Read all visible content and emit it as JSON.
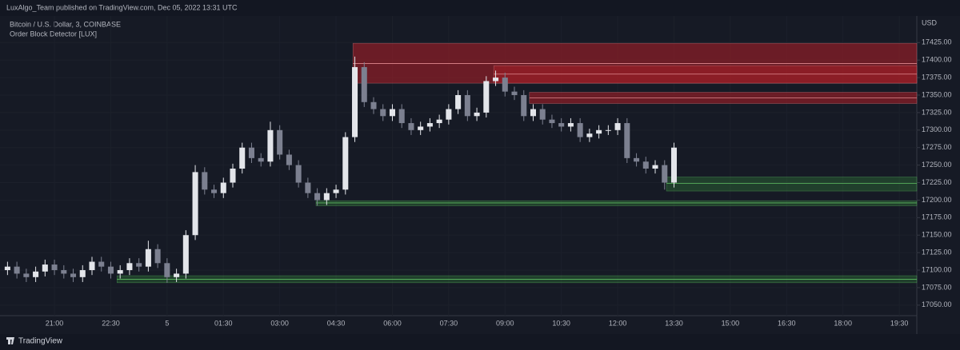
{
  "header": {
    "published": "LuxAlgo_Team published on TradingView.com, Dec 05, 2022 13:31 UTC"
  },
  "footer": {
    "brand": "TradingView"
  },
  "chart_data": {
    "type": "candlestick",
    "title": "Bitcoin / U.S. Dollar, 3, COINBASE",
    "subtitle": "Order Block Detector [LUX]",
    "y_axis_label": "USD",
    "up_color": "#e3e5ea",
    "down_color": "#7c8090",
    "x": [
      15,
      30,
      45,
      60,
      75,
      90,
      105,
      120,
      135,
      150,
      165,
      180,
      195,
      210,
      225,
      240,
      255,
      270,
      285,
      300,
      315,
      330,
      345,
      360,
      375,
      390,
      405,
      420,
      435,
      450,
      465,
      480,
      495,
      510,
      525,
      540,
      555,
      570,
      585,
      600,
      615,
      630,
      645,
      660,
      675,
      690,
      705,
      720,
      735,
      750,
      765,
      780,
      795,
      810,
      825,
      840,
      855,
      870,
      885,
      900,
      915,
      930,
      945,
      960,
      975,
      990,
      1005,
      1020,
      1035,
      1050,
      1065,
      1080
    ],
    "open": [
      17100,
      17105,
      17095,
      17090,
      17098,
      17108,
      17100,
      17095,
      17090,
      17100,
      17112,
      17105,
      17095,
      17100,
      17110,
      17105,
      17130,
      17110,
      17090,
      17095,
      17150,
      17240,
      17215,
      17210,
      17225,
      17245,
      17275,
      17260,
      17255,
      17300,
      17265,
      17250,
      17225,
      17210,
      17200,
      17210,
      17215,
      17290,
      17390,
      17340,
      17330,
      17320,
      17330,
      17310,
      17300,
      17305,
      17310,
      17315,
      17330,
      17350,
      17320,
      17325,
      17370,
      17375,
      17355,
      17350,
      17320,
      17330,
      17315,
      17310,
      17305,
      17310,
      17290,
      17295,
      17300,
      17300,
      17310,
      17260,
      17255,
      17245,
      17250,
      17225
    ],
    "high": [
      17112,
      17112,
      17102,
      17105,
      17115,
      17115,
      17107,
      17102,
      17107,
      17119,
      17119,
      17112,
      17107,
      17117,
      17117,
      17142,
      17137,
      17117,
      17102,
      17157,
      17250,
      17247,
      17222,
      17232,
      17252,
      17282,
      17282,
      17267,
      17312,
      17307,
      17272,
      17257,
      17232,
      17217,
      17217,
      17222,
      17297,
      17405,
      17397,
      17347,
      17337,
      17337,
      17337,
      17317,
      17312,
      17317,
      17322,
      17337,
      17357,
      17357,
      17332,
      17377,
      17385,
      17382,
      17362,
      17357,
      17337,
      17337,
      17322,
      17317,
      17317,
      17317,
      17302,
      17307,
      17307,
      17317,
      17317,
      17267,
      17262,
      17257,
      17257,
      17282
    ],
    "low": [
      17093,
      17088,
      17083,
      17083,
      17091,
      17093,
      17088,
      17083,
      17083,
      17093,
      17098,
      17088,
      17088,
      17093,
      17098,
      17098,
      17103,
      17082,
      17083,
      17088,
      17143,
      17208,
      17203,
      17203,
      17218,
      17238,
      17253,
      17248,
      17248,
      17258,
      17243,
      17218,
      17203,
      17192,
      17193,
      17203,
      17208,
      17283,
      17333,
      17323,
      17313,
      17313,
      17303,
      17293,
      17293,
      17298,
      17303,
      17308,
      17323,
      17313,
      17313,
      17318,
      17363,
      17348,
      17343,
      17313,
      17313,
      17308,
      17303,
      17298,
      17298,
      17283,
      17283,
      17288,
      17293,
      17293,
      17253,
      17248,
      17238,
      17238,
      17215,
      17218
    ],
    "close": [
      17105,
      17095,
      17090,
      17098,
      17108,
      17100,
      17095,
      17090,
      17100,
      17112,
      17105,
      17095,
      17100,
      17110,
      17105,
      17130,
      17110,
      17090,
      17095,
      17150,
      17240,
      17215,
      17210,
      17225,
      17245,
      17275,
      17260,
      17255,
      17300,
      17265,
      17250,
      17225,
      17210,
      17200,
      17210,
      17215,
      17290,
      17390,
      17340,
      17330,
      17320,
      17330,
      17310,
      17300,
      17305,
      17310,
      17315,
      17330,
      17350,
      17320,
      17325,
      17370,
      17375,
      17355,
      17350,
      17320,
      17330,
      17315,
      17310,
      17305,
      17310,
      17290,
      17295,
      17300,
      17300,
      17310,
      17260,
      17255,
      17245,
      17250,
      17225,
      17275
    ],
    "bearish_color": "rgba(160,30,38,0.62)",
    "bearish_line": "#e08a8f",
    "bullish_color": "rgba(56,142,60,0.32)",
    "bullish_line": "#5fbf63",
    "bearish_blocks": [
      {
        "start": 567,
        "top": 17424,
        "bottom": 17367,
        "mid": 17395
      },
      {
        "start": 792,
        "top": 17392,
        "bottom": 17367,
        "mid": 17380
      },
      {
        "start": 849,
        "top": 17354,
        "bottom": 17338,
        "mid": 17346
      }
    ],
    "bullish_blocks": [
      {
        "start": 1068,
        "top": 17233,
        "bottom": 17213,
        "mid": 17224
      },
      {
        "start": 508,
        "top": 17199,
        "bottom": 17192,
        "mid": 17196
      },
      {
        "start": 190,
        "top": 17092,
        "bottom": 17082,
        "mid": 17087
      }
    ],
    "xlim": [
      3,
      1468
    ],
    "ylim": [
      17035,
      17463
    ],
    "xticks": [
      {
        "value": 90,
        "label": "21:00"
      },
      {
        "value": 180,
        "label": "22:30"
      },
      {
        "value": 270,
        "label": "5"
      },
      {
        "value": 360,
        "label": "01:30"
      },
      {
        "value": 450,
        "label": "03:00"
      },
      {
        "value": 540,
        "label": "04:30"
      },
      {
        "value": 630,
        "label": "06:00"
      },
      {
        "value": 720,
        "label": "07:30"
      },
      {
        "value": 810,
        "label": "09:00"
      },
      {
        "value": 900,
        "label": "10:30"
      },
      {
        "value": 990,
        "label": "12:00"
      },
      {
        "value": 1080,
        "label": "13:30"
      },
      {
        "value": 1170,
        "label": "15:00"
      },
      {
        "value": 1260,
        "label": "16:30"
      },
      {
        "value": 1350,
        "label": "18:00"
      },
      {
        "value": 1440,
        "label": "19:30"
      }
    ],
    "yticks": [
      {
        "value": 17050,
        "label": "17050.00"
      },
      {
        "value": 17075,
        "label": "17075.00"
      },
      {
        "value": 17100,
        "label": "17100.00"
      },
      {
        "value": 17125,
        "label": "17125.00"
      },
      {
        "value": 17150,
        "label": "17150.00"
      },
      {
        "value": 17175,
        "label": "17175.00"
      },
      {
        "value": 17200,
        "label": "17200.00"
      },
      {
        "value": 17225,
        "label": "17225.00"
      },
      {
        "value": 17250,
        "label": "17250.00"
      },
      {
        "value": 17275,
        "label": "17275.00"
      },
      {
        "value": 17300,
        "label": "17300.00"
      },
      {
        "value": 17325,
        "label": "17325.00"
      },
      {
        "value": 17350,
        "label": "17350.00"
      },
      {
        "value": 17375,
        "label": "17375.00"
      },
      {
        "value": 17400,
        "label": "17400.00"
      },
      {
        "value": 17425,
        "label": "17425.00"
      }
    ],
    "grid": true
  }
}
